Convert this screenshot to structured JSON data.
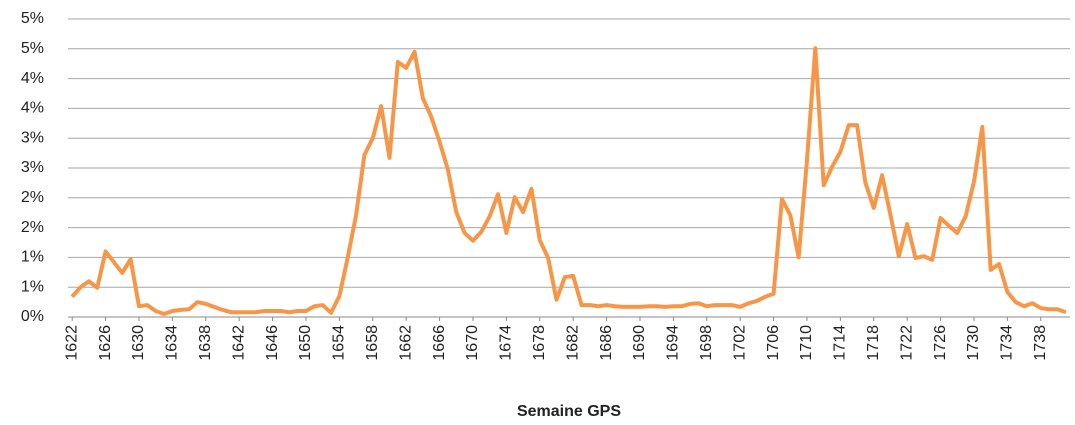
{
  "chart_data": {
    "type": "line",
    "x_label": "Semaine GPS",
    "x": [
      1622,
      1623,
      1624,
      1625,
      1626,
      1627,
      1628,
      1629,
      1630,
      1631,
      1632,
      1633,
      1634,
      1635,
      1636,
      1637,
      1638,
      1639,
      1640,
      1641,
      1642,
      1643,
      1644,
      1645,
      1646,
      1647,
      1648,
      1649,
      1650,
      1651,
      1652,
      1653,
      1654,
      1655,
      1656,
      1657,
      1658,
      1659,
      1660,
      1661,
      1662,
      1663,
      1664,
      1665,
      1666,
      1667,
      1668,
      1669,
      1670,
      1671,
      1672,
      1673,
      1674,
      1675,
      1676,
      1677,
      1678,
      1679,
      1680,
      1681,
      1682,
      1683,
      1684,
      1685,
      1686,
      1687,
      1688,
      1689,
      1690,
      1691,
      1692,
      1693,
      1694,
      1695,
      1696,
      1697,
      1698,
      1699,
      1700,
      1701,
      1702,
      1703,
      1704,
      1705,
      1706,
      1707,
      1708,
      1709,
      1710,
      1711,
      1712,
      1713,
      1714,
      1715,
      1716,
      1717,
      1718,
      1719,
      1720,
      1721,
      1722,
      1723,
      1724,
      1725,
      1726,
      1727,
      1728,
      1729,
      1730,
      1731,
      1732,
      1733,
      1734,
      1735,
      1736,
      1737,
      1738,
      1739,
      1740,
      1741
    ],
    "series": [
      {
        "color": "#f79646",
        "values": [
          0.34,
          0.5,
          0.6,
          0.49,
          1.1,
          0.92,
          0.74,
          0.97,
          0.18,
          0.2,
          0.1,
          0.05,
          0.1,
          0.12,
          0.13,
          0.25,
          0.22,
          0.17,
          0.12,
          0.08,
          0.08,
          0.08,
          0.08,
          0.1,
          0.1,
          0.1,
          0.08,
          0.1,
          0.1,
          0.18,
          0.2,
          0.07,
          0.35,
          1.0,
          1.71,
          2.72,
          3.0,
          3.54,
          2.67,
          4.28,
          4.18,
          4.45,
          3.67,
          3.36,
          2.94,
          2.47,
          1.76,
          1.41,
          1.28,
          1.43,
          1.69,
          2.06,
          1.41,
          2.01,
          1.76,
          2.15,
          1.29,
          0.99,
          0.29,
          0.67,
          0.69,
          0.2,
          0.2,
          0.18,
          0.2,
          0.18,
          0.17,
          0.17,
          0.17,
          0.18,
          0.18,
          0.17,
          0.18,
          0.18,
          0.22,
          0.23,
          0.18,
          0.2,
          0.2,
          0.2,
          0.17,
          0.23,
          0.27,
          0.34,
          0.39,
          1.98,
          1.71,
          1.0,
          2.63,
          4.51,
          2.21,
          2.52,
          2.77,
          3.22,
          3.22,
          2.25,
          1.83,
          2.38,
          1.71,
          1.02,
          1.56,
          0.99,
          1.02,
          0.96,
          1.66,
          1.53,
          1.41,
          1.69,
          2.27,
          3.19,
          0.79,
          0.89,
          0.42,
          0.25,
          0.18,
          0.23,
          0.15,
          0.13,
          0.13,
          0.08
        ]
      }
    ],
    "xlim": [
      1621.5,
      1741.5
    ],
    "xticks": [
      1622,
      1626,
      1630,
      1634,
      1638,
      1642,
      1646,
      1650,
      1654,
      1658,
      1662,
      1666,
      1670,
      1674,
      1678,
      1682,
      1686,
      1690,
      1694,
      1698,
      1702,
      1706,
      1710,
      1714,
      1718,
      1722,
      1726,
      1730,
      1734,
      1738
    ],
    "ylim": [
      0,
      5
    ],
    "yticks": [
      {
        "value": 0,
        "label": "0%"
      },
      {
        "value": 0.5,
        "label": "1%"
      },
      {
        "value": 1,
        "label": "1%"
      },
      {
        "value": 1.5,
        "label": "2%"
      },
      {
        "value": 2,
        "label": "2%"
      },
      {
        "value": 2.5,
        "label": "3%"
      },
      {
        "value": 3,
        "label": "3%"
      },
      {
        "value": 3.5,
        "label": "4%"
      },
      {
        "value": 4,
        "label": "4%"
      },
      {
        "value": 4.5,
        "label": "5%"
      },
      {
        "value": 5,
        "label": "5%"
      }
    ],
    "grid": true
  }
}
